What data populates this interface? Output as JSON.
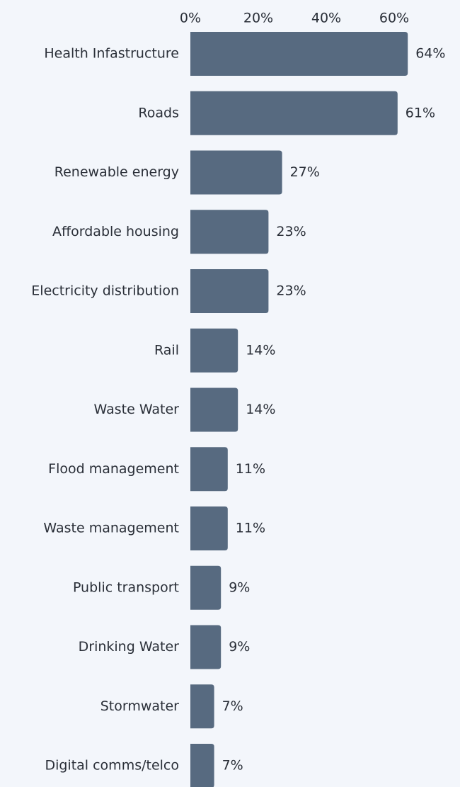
{
  "colors": {
    "background": "#f3f6fb",
    "bar": "#576a80",
    "text": "#2a2f38"
  },
  "chart_data": {
    "type": "bar",
    "orientation": "horizontal",
    "title": "",
    "xlabel": "",
    "ylabel": "",
    "x_axis_position": "top",
    "xlim": [
      0,
      70
    ],
    "x_ticks": [
      0,
      20,
      40,
      60
    ],
    "x_tick_labels": [
      "0%",
      "20%",
      "40%",
      "60%"
    ],
    "grid": false,
    "legend": "none",
    "categories": [
      "Health Infastructure",
      "Roads",
      "Renewable energy",
      "Affordable housing",
      "Electricity distribution",
      "Rail",
      "Waste Water",
      "Flood management",
      "Waste management",
      "Public transport",
      "Drinking Water",
      "Stormwater",
      "Digital comms/telco"
    ],
    "values": [
      64,
      61,
      27,
      23,
      23,
      14,
      14,
      11,
      11,
      9,
      9,
      7,
      7
    ],
    "value_labels": [
      "64%",
      "61%",
      "27%",
      "23%",
      "23%",
      "14%",
      "14%",
      "11%",
      "11%",
      "9%",
      "9%",
      "7%",
      "7%"
    ]
  }
}
